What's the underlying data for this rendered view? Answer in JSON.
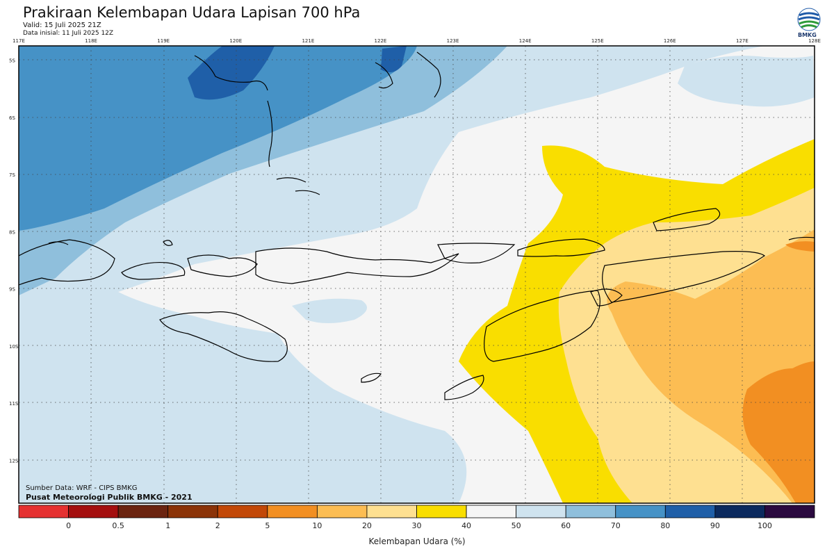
{
  "header": {
    "title": "Prakiraan Kelembapan Udara Lapisan 700 hPa",
    "valid": "Valid: 15 Juli 2025 21Z",
    "initial": "Data inisial: 11 Juli 2025 12Z"
  },
  "logo": {
    "text": "BMKG",
    "icon": "bmkg-logo-icon"
  },
  "map": {
    "lon_labels": [
      "117E",
      "118E",
      "119E",
      "120E",
      "121E",
      "122E",
      "123E",
      "124E",
      "125E",
      "126E",
      "127E",
      "128E"
    ],
    "lat_labels": [
      "5S",
      "6S",
      "7S",
      "8S",
      "9S",
      "10S",
      "11S",
      "12S"
    ],
    "lon_range": [
      117,
      128
    ],
    "lat_range": [
      -4.75,
      -12.75
    ],
    "grid": "dotted"
  },
  "colorbar": {
    "title": "Kelembapan Udara (%)",
    "bins": [
      {
        "color": "#e53131"
      },
      {
        "color": "#a40f0f"
      },
      {
        "color": "#6b2410"
      },
      {
        "color": "#8b3308"
      },
      {
        "color": "#c24807"
      },
      {
        "color": "#f28f22"
      },
      {
        "color": "#fcbd53"
      },
      {
        "color": "#fee091"
      },
      {
        "color": "#f9de00"
      },
      {
        "color": "#f5f5f5"
      },
      {
        "color": "#cfe3ef"
      },
      {
        "color": "#8fbfdc"
      },
      {
        "color": "#4692c6"
      },
      {
        "color": "#1f5fa8"
      },
      {
        "color": "#0b2a5e"
      },
      {
        "color": "#2b0a40"
      }
    ],
    "tick_labels": [
      "0",
      "0.5",
      "1",
      "2",
      "5",
      "10",
      "20",
      "30",
      "40",
      "50",
      "60",
      "70",
      "80",
      "90",
      "100"
    ]
  },
  "source": {
    "line1": "Sumber Data: WRF - CIPS BMKG",
    "line2": "Pusat Meteorologi Publik BMKG - 2021"
  }
}
